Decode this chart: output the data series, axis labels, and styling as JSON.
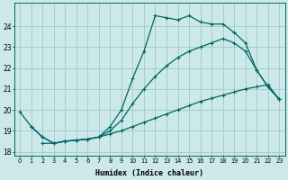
{
  "xlabel": "Humidex (Indice chaleur)",
  "background_color": "#cce8e8",
  "grid_color": "#99cccc",
  "line_color": "#006666",
  "xlim": [
    -0.5,
    23.5
  ],
  "ylim": [
    17.8,
    25.1
  ],
  "xticks": [
    0,
    1,
    2,
    3,
    4,
    5,
    6,
    7,
    8,
    9,
    10,
    11,
    12,
    13,
    14,
    15,
    16,
    17,
    18,
    19,
    20,
    21,
    22,
    23
  ],
  "yticks": [
    18,
    19,
    20,
    21,
    22,
    23,
    24
  ],
  "line1_x": [
    0,
    1,
    2,
    3,
    4,
    5,
    6,
    7,
    8,
    9,
    10,
    11,
    12,
    13,
    14,
    15,
    16,
    17,
    18,
    19,
    20,
    21,
    22,
    23
  ],
  "line1_y": [
    19.9,
    19.2,
    18.7,
    18.4,
    18.5,
    18.55,
    18.6,
    18.7,
    19.2,
    20.0,
    21.5,
    22.8,
    24.5,
    24.4,
    24.3,
    24.5,
    24.2,
    24.1,
    24.1,
    23.7,
    23.2,
    21.9,
    21.1,
    20.5
  ],
  "line2_x": [
    1,
    2,
    3,
    4,
    5,
    6,
    7,
    8,
    9,
    10,
    11,
    12,
    13,
    14,
    15,
    16,
    17,
    18,
    19,
    20,
    21,
    22,
    23
  ],
  "line2_y": [
    19.2,
    18.7,
    18.4,
    18.5,
    18.55,
    18.6,
    18.7,
    19.0,
    19.5,
    20.3,
    21.0,
    21.6,
    22.1,
    22.5,
    22.8,
    23.0,
    23.2,
    23.4,
    23.2,
    22.8,
    21.9,
    21.1,
    20.5
  ],
  "line3_x": [
    2,
    3,
    4,
    5,
    6,
    7,
    8,
    9,
    10,
    11,
    12,
    13,
    14,
    15,
    16,
    17,
    18,
    19,
    20,
    21,
    22,
    23
  ],
  "line3_y": [
    18.4,
    18.4,
    18.5,
    18.55,
    18.6,
    18.7,
    18.85,
    19.0,
    19.2,
    19.4,
    19.6,
    19.8,
    20.0,
    20.2,
    20.4,
    20.55,
    20.7,
    20.85,
    21.0,
    21.1,
    21.2,
    20.5
  ]
}
